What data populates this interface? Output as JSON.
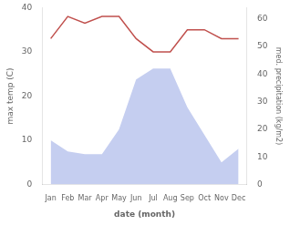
{
  "chart_data": {
    "type": "line",
    "categories": [
      "Jan",
      "Feb",
      "Mar",
      "Apr",
      "May",
      "Jun",
      "Jul",
      "Aug",
      "Sep",
      "Oct",
      "Nov",
      "Dec"
    ],
    "series": [
      {
        "type": "line",
        "color": "#c0504d",
        "values": [
          33,
          38,
          36.5,
          38,
          38,
          33,
          30,
          30,
          35,
          35,
          33,
          33
        ]
      },
      {
        "type": "area",
        "color": "#c5cef0",
        "axis": "y2",
        "values": [
          16,
          12,
          11,
          11,
          20,
          38,
          42,
          42,
          28,
          18,
          8,
          13
        ]
      }
    ],
    "xlabel": "date (month)",
    "ylabel": "max temp (C)",
    "y2label": "med. precipitation (kg/m2)",
    "ylim": [
      0,
      40
    ],
    "yticks": [
      0,
      10,
      20,
      30,
      40
    ],
    "y2lim": [
      0,
      64
    ],
    "y2ticks": [
      0,
      10,
      20,
      30,
      40,
      50,
      60
    ],
    "grid": false,
    "legend": false
  }
}
